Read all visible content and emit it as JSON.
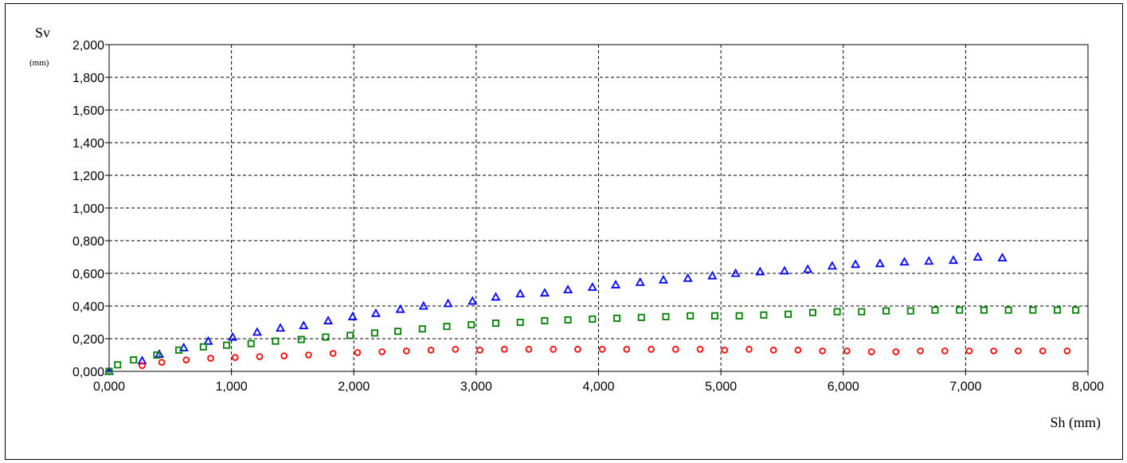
{
  "chart_data": {
    "type": "scatter",
    "title": "",
    "xlabel": "Sh (mm)",
    "ylabel": "Sv",
    "ylabel_unit": "(mm)",
    "xlim": [
      0,
      8
    ],
    "ylim": [
      0,
      2
    ],
    "x_ticks": [
      0,
      1,
      2,
      3,
      4,
      5,
      6,
      7,
      8
    ],
    "y_ticks": [
      0,
      0.2,
      0.4,
      0.6,
      0.8,
      1.0,
      1.2,
      1.4,
      1.6,
      1.8,
      2.0
    ],
    "x_tick_labels": [
      "0,000",
      "1,000",
      "2,000",
      "3,000",
      "4,000",
      "5,000",
      "6,000",
      "7,000",
      "8,000"
    ],
    "y_tick_labels": [
      "0,000",
      "0,200",
      "0,400",
      "0,600",
      "0,800",
      "1,000",
      "1,200",
      "1,400",
      "1,600",
      "1,800",
      "2,000"
    ],
    "grid": true,
    "legend": "none",
    "series": [
      {
        "marker": "triangle",
        "color": "#0000ff",
        "x": [
          0.0,
          0.27,
          0.41,
          0.61,
          0.81,
          1.01,
          1.21,
          1.4,
          1.59,
          1.79,
          1.99,
          2.18,
          2.38,
          2.57,
          2.77,
          2.97,
          3.16,
          3.36,
          3.56,
          3.75,
          3.95,
          4.14,
          4.34,
          4.53,
          4.73,
          4.93,
          5.12,
          5.32,
          5.52,
          5.71,
          5.91,
          6.1,
          6.3,
          6.5,
          6.7,
          6.9,
          7.1,
          7.3
        ],
        "y": [
          0.0,
          0.065,
          0.105,
          0.145,
          0.185,
          0.21,
          0.24,
          0.265,
          0.28,
          0.31,
          0.335,
          0.355,
          0.38,
          0.4,
          0.415,
          0.43,
          0.455,
          0.475,
          0.48,
          0.5,
          0.515,
          0.53,
          0.545,
          0.56,
          0.57,
          0.585,
          0.6,
          0.61,
          0.615,
          0.625,
          0.645,
          0.655,
          0.66,
          0.67,
          0.675,
          0.68,
          0.7,
          0.695
        ]
      },
      {
        "marker": "square",
        "color": "#008000",
        "x": [
          0.0,
          0.07,
          0.2,
          0.39,
          0.57,
          0.77,
          0.96,
          1.16,
          1.36,
          1.57,
          1.77,
          1.97,
          2.17,
          2.36,
          2.56,
          2.76,
          2.96,
          3.16,
          3.36,
          3.56,
          3.75,
          3.95,
          4.15,
          4.35,
          4.55,
          4.75,
          4.95,
          5.15,
          5.35,
          5.55,
          5.75,
          5.95,
          6.15,
          6.35,
          6.55,
          6.75,
          6.95,
          7.15,
          7.35,
          7.55,
          7.75,
          7.9
        ],
        "y": [
          0.0,
          0.04,
          0.07,
          0.1,
          0.13,
          0.15,
          0.16,
          0.17,
          0.185,
          0.195,
          0.21,
          0.22,
          0.235,
          0.245,
          0.26,
          0.275,
          0.285,
          0.295,
          0.3,
          0.31,
          0.315,
          0.32,
          0.325,
          0.33,
          0.335,
          0.34,
          0.34,
          0.34,
          0.345,
          0.35,
          0.36,
          0.365,
          0.365,
          0.37,
          0.37,
          0.375,
          0.375,
          0.375,
          0.375,
          0.375,
          0.375,
          0.375
        ]
      },
      {
        "marker": "circle",
        "color": "#ff0000",
        "x": [
          0.27,
          0.43,
          0.63,
          0.83,
          1.03,
          1.23,
          1.43,
          1.63,
          1.83,
          2.03,
          2.23,
          2.43,
          2.63,
          2.83,
          3.03,
          3.23,
          3.43,
          3.63,
          3.83,
          4.03,
          4.23,
          4.43,
          4.63,
          4.83,
          5.03,
          5.23,
          5.43,
          5.63,
          5.83,
          6.03,
          6.23,
          6.43,
          6.63,
          6.83,
          7.03,
          7.23,
          7.43,
          7.63,
          7.83
        ],
        "y": [
          0.035,
          0.055,
          0.07,
          0.08,
          0.085,
          0.09,
          0.095,
          0.1,
          0.11,
          0.115,
          0.12,
          0.125,
          0.13,
          0.135,
          0.13,
          0.135,
          0.135,
          0.135,
          0.135,
          0.135,
          0.135,
          0.135,
          0.135,
          0.135,
          0.13,
          0.135,
          0.13,
          0.13,
          0.125,
          0.125,
          0.12,
          0.12,
          0.125,
          0.125,
          0.125,
          0.125,
          0.125,
          0.125,
          0.125
        ]
      }
    ]
  }
}
